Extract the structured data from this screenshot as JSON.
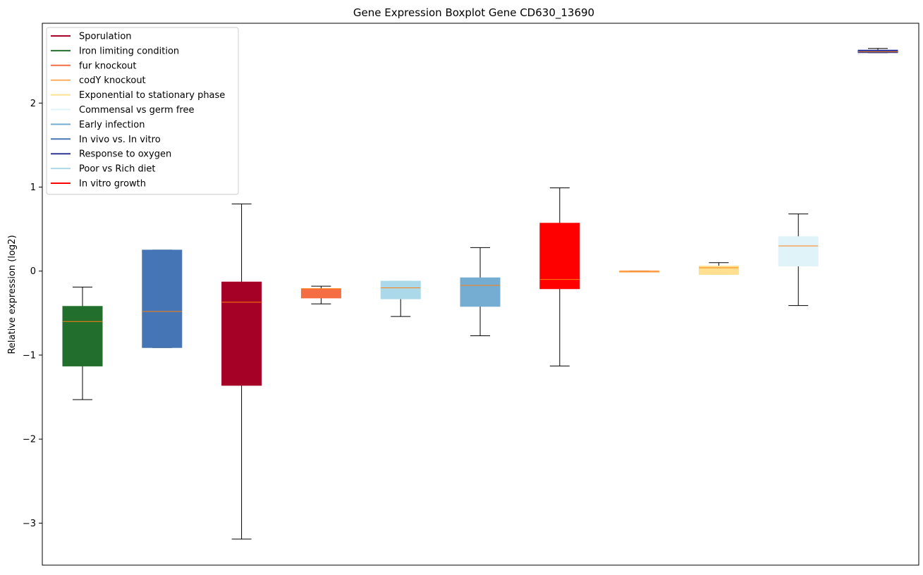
{
  "chart_data": {
    "type": "box",
    "title": "Gene Expression Boxplot Gene CD630_13690",
    "xlabel": "",
    "ylabel": "Relative expression (log2)",
    "ylim": [
      -3.5,
      2.95
    ],
    "yticks": [
      -3,
      -2,
      -1,
      0,
      1,
      2
    ],
    "ytick_labels": [
      "−3",
      "−2",
      "−1",
      "0",
      "1",
      "2"
    ],
    "grid": false,
    "legend_position": "top-left",
    "median_color": "#ff7f0e",
    "legend": [
      {
        "label": "Sporulation",
        "color": "#a50026"
      },
      {
        "label": "Iron limiting condition",
        "color": "#226e2c"
      },
      {
        "label": "fur knockout",
        "color": "#f46d43"
      },
      {
        "label": "codY knockout",
        "color": "#fdae61"
      },
      {
        "label": "Exponential to stationary phase",
        "color": "#fee090"
      },
      {
        "label": "Commensal vs germ free",
        "color": "#e0f3f8"
      },
      {
        "label": "Early infection",
        "color": "#74add1"
      },
      {
        "label": "In vivo vs. In vitro",
        "color": "#4575b4"
      },
      {
        "label": "Response to oxygen",
        "color": "#313695"
      },
      {
        "label": "Poor vs Rich diet",
        "color": "#abd9e9"
      },
      {
        "label": "In vitro growth",
        "color": "#ff0000"
      }
    ],
    "boxes": [
      {
        "color": "#226e2c",
        "whislo": -1.53,
        "q1": -1.13,
        "med": -0.6,
        "q3": -0.42,
        "whishi": -0.19
      },
      {
        "color": "#4575b4",
        "whislo": -0.91,
        "q1": -0.91,
        "med": -0.48,
        "q3": 0.25,
        "whishi": 0.25
      },
      {
        "color": "#a50026",
        "whislo": -3.19,
        "q1": -1.36,
        "med": -0.37,
        "q3": -0.13,
        "whishi": 0.8
      },
      {
        "color": "#f46d43",
        "whislo": -0.39,
        "q1": -0.32,
        "med": -0.21,
        "q3": -0.21,
        "whishi": -0.18
      },
      {
        "color": "#abd9e9",
        "whislo": -0.54,
        "q1": -0.33,
        "med": -0.2,
        "q3": -0.12,
        "whishi": -0.12
      },
      {
        "color": "#74add1",
        "whislo": -0.77,
        "q1": -0.42,
        "med": -0.17,
        "q3": -0.08,
        "whishi": 0.28
      },
      {
        "color": "#ff0000",
        "whislo": -1.13,
        "q1": -0.21,
        "med": -0.1,
        "q3": 0.57,
        "whishi": 0.99
      },
      {
        "color": "#fdae61",
        "whislo": 0.0,
        "q1": 0.0,
        "med": 0.0,
        "q3": 0.0,
        "whishi": 0.0
      },
      {
        "color": "#fee090",
        "whislo": -0.04,
        "q1": -0.04,
        "med": 0.04,
        "q3": 0.06,
        "whishi": 0.1
      },
      {
        "color": "#e0f3f8",
        "whislo": -0.41,
        "q1": 0.06,
        "med": 0.3,
        "q3": 0.41,
        "whishi": 0.68
      },
      {
        "color": "#313695",
        "whislo": 2.6,
        "q1": 2.6,
        "med": 2.61,
        "q3": 2.63,
        "whishi": 2.65
      }
    ]
  }
}
